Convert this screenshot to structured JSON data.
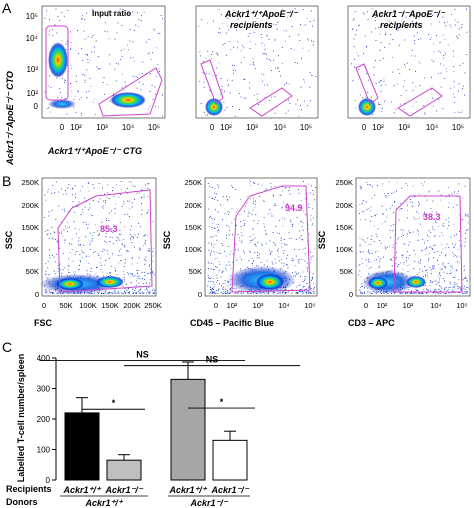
{
  "panel_letters": [
    "A",
    "B",
    "C"
  ],
  "panel_a": {
    "ylabel": "Ackr1⁻/⁻ApoE⁻/⁻ CTO",
    "xlabel": "Ackr1⁺/⁺ApoE⁻/⁻ CTG",
    "plots": [
      {
        "title_line1": "Input ratio",
        "title_line2": ""
      },
      {
        "title_line1": "Ackr1⁺/⁺ApoE⁻/⁻",
        "title_line2": "recipients"
      },
      {
        "title_line1": "Ackr1⁻/⁻ApoE⁻/⁻",
        "title_line2": "recipients"
      }
    ],
    "y_ticks": [
      "10⁵",
      "10⁴",
      "10³",
      "10²",
      "0"
    ],
    "x_ticks": [
      "0",
      "10²",
      "10³",
      "10⁴",
      "10⁵"
    ]
  },
  "panel_b": {
    "plots": [
      {
        "ylabel": "SSC",
        "xlabel": "FSC",
        "gate_value": "85.3",
        "x_ticks": [
          "0",
          "50K",
          "100K",
          "150K",
          "200K",
          "250K"
        ]
      },
      {
        "ylabel": "SSC",
        "xlabel": "CD45 – Pacific Blue",
        "gate_value": "94.9",
        "x_ticks": [
          "0",
          "10²",
          "10³",
          "10⁴",
          "10⁵"
        ]
      },
      {
        "ylabel": "SSC",
        "xlabel": "CD3 – APC",
        "gate_value": "38.3",
        "x_ticks": [
          "0",
          "10²",
          "10³",
          "10⁴",
          "10⁵"
        ]
      }
    ],
    "y_ticks": [
      "250K",
      "200K",
      "150K",
      "100K",
      "50K",
      "0"
    ]
  },
  "panel_c": {
    "chart_data": {
      "type": "bar",
      "ylabel": "Labelled T-cell number/spleen",
      "ylim": [
        0,
        400
      ],
      "yticks": [
        "0",
        "100",
        "200",
        "300",
        "400"
      ],
      "categories": [
        "Ackr1⁺/⁺",
        "Ackr1⁻/⁻",
        "Ackr1⁺/⁺",
        "Ackr1⁻/⁻"
      ],
      "values": [
        220,
        65,
        330,
        130
      ],
      "errors": [
        50,
        18,
        57,
        30
      ],
      "bar_colors": [
        "#000000",
        "#bfbfbf",
        "#a6a6a6",
        "#ffffff"
      ],
      "row_recipients": "Recipients",
      "row_donors": "Donors",
      "donor_groups": [
        "Ackr1⁺/⁺",
        "Ackr1⁻/⁻"
      ],
      "significance": [
        {
          "label": "*",
          "between": [
            0,
            1
          ]
        },
        {
          "label": "*",
          "between": [
            2,
            3
          ]
        },
        {
          "label": "NS",
          "between": [
            0,
            2
          ]
        },
        {
          "label": "NS",
          "between": [
            1,
            3
          ]
        }
      ]
    }
  }
}
